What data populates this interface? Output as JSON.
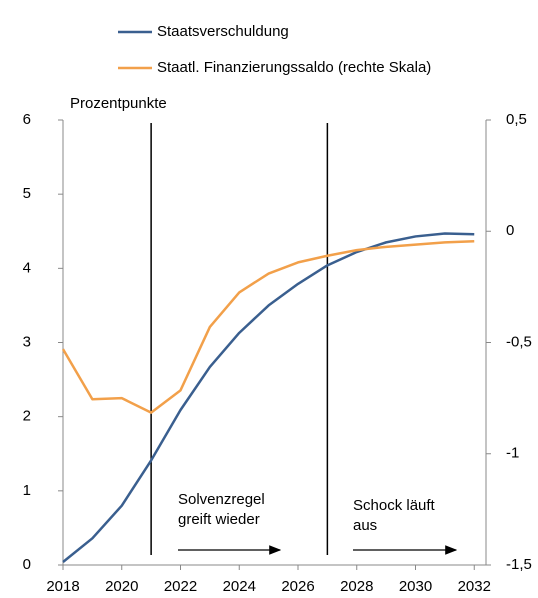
{
  "chart_data": {
    "type": "line",
    "x": [
      2018,
      2019,
      2020,
      2021,
      2022,
      2023,
      2024,
      2025,
      2026,
      2027,
      2028,
      2029,
      2030,
      2031,
      2032
    ],
    "series": [
      {
        "name": "Staatsverschuldung",
        "color": "#3a5f8f",
        "values": [
          0.04,
          0.36,
          0.8,
          1.41,
          2.09,
          2.67,
          3.13,
          3.5,
          3.79,
          4.04,
          4.22,
          4.35,
          4.43,
          4.47,
          4.46
        ]
      },
      {
        "name": "Staatl. Finanzierungssaldo (rechte Skala)",
        "color": "#f2a04a",
        "axis": "y2",
        "values": [
          -0.53,
          -0.755,
          -0.75,
          -0.815,
          -0.715,
          -0.43,
          -0.275,
          -0.19,
          -0.14,
          -0.11,
          -0.085,
          -0.07,
          -0.06,
          -0.05,
          -0.045
        ]
      }
    ],
    "xlim": [
      2018,
      2032.4
    ],
    "xticks": [
      2018,
      2020,
      2022,
      2024,
      2026,
      2028,
      2030,
      2032
    ],
    "ylim": [
      0,
      6
    ],
    "yticks": [
      0,
      1,
      2,
      3,
      4,
      5,
      6
    ],
    "y2lim": [
      -1.5,
      0.5
    ],
    "y2ticks": [
      {
        "value": -1.5,
        "label": "-1,5"
      },
      -1,
      {
        "value": -0.5,
        "label": "-0,5"
      },
      0,
      {
        "value": 0.5,
        "label": "0,5"
      }
    ],
    "y_unit_label": "Prozentpunkte",
    "vlines": [
      2021,
      2027
    ],
    "annotations": [
      {
        "lines": [
          "Solvenzregel",
          "greift wieder"
        ]
      },
      {
        "lines": [
          "Schock läuft",
          "aus"
        ]
      }
    ]
  }
}
